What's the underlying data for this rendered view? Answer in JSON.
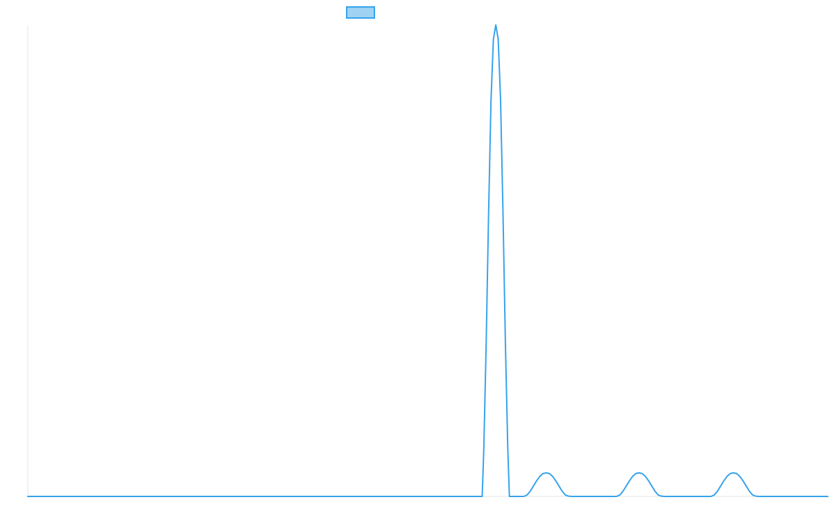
{
  "chart_data": {
    "type": "line",
    "title": "",
    "xlabel": "",
    "ylabel": "",
    "grid": false,
    "legend": {
      "placement": "top-center",
      "entries": [
        {
          "label": "",
          "color": "#36a2eb",
          "fill": "#9fd2f3"
        }
      ]
    },
    "xlim": [
      0,
      100
    ],
    "ylim": [
      0,
      20
    ],
    "series": [
      {
        "color": "#36a2eb",
        "x": [
          0,
          56.8,
          57.0,
          57.3,
          57.6,
          57.9,
          58.2,
          58.5,
          58.8,
          59.1,
          59.4,
          59.7,
          60.0,
          60.2,
          62.0,
          62.4,
          62.8,
          63.2,
          63.6,
          64.0,
          64.4,
          64.8,
          65.2,
          65.6,
          66.0,
          66.4,
          66.8,
          67.2,
          67.6,
          68.0,
          73.6,
          74.0,
          74.4,
          74.8,
          75.2,
          75.6,
          76.0,
          76.4,
          76.8,
          77.2,
          77.6,
          78.0,
          78.4,
          78.8,
          79.2,
          79.6,
          85.4,
          85.8,
          86.2,
          86.6,
          87.0,
          87.4,
          87.8,
          88.2,
          88.6,
          89.0,
          89.4,
          89.8,
          90.2,
          90.6,
          91.0,
          91.4,
          100
        ],
        "y": [
          0,
          0,
          2.0,
          6.5,
          12.0,
          16.8,
          19.4,
          20.0,
          19.4,
          16.8,
          12.0,
          6.5,
          2.0,
          0,
          0,
          0.06,
          0.22,
          0.44,
          0.66,
          0.85,
          0.97,
          1.0,
          0.97,
          0.85,
          0.66,
          0.44,
          0.22,
          0.06,
          0.01,
          0,
          0,
          0.06,
          0.22,
          0.44,
          0.66,
          0.85,
          0.97,
          1.0,
          0.97,
          0.85,
          0.66,
          0.44,
          0.22,
          0.06,
          0.01,
          0,
          0,
          0.06,
          0.22,
          0.44,
          0.66,
          0.85,
          0.97,
          1.0,
          0.97,
          0.85,
          0.66,
          0.44,
          0.22,
          0.06,
          0.01,
          0,
          0
        ]
      }
    ]
  }
}
